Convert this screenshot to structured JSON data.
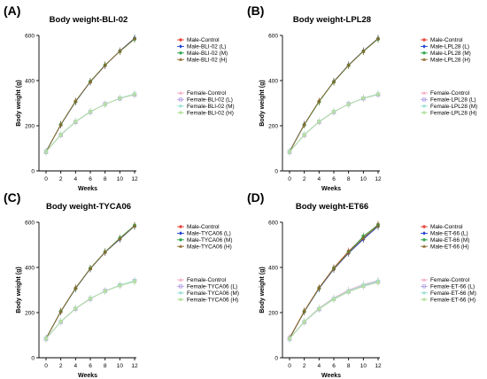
{
  "chart_data": [
    {
      "type": "line",
      "panel": "(A)",
      "title": "Body weight-BLI-02",
      "xlabel": "Weeks",
      "ylabel": "Body weight (g)",
      "x": [
        0,
        2,
        4,
        6,
        8,
        10,
        12
      ],
      "xlim": [
        0,
        12.5
      ],
      "ylim": [
        0,
        600
      ],
      "yticks": [
        0,
        200,
        400,
        600
      ],
      "legend_position": "right",
      "series": [
        {
          "name": "Male-Control",
          "color": "#e8453c",
          "marker": "circle",
          "values": [
            85,
            205,
            308,
            395,
            468,
            530,
            585
          ]
        },
        {
          "name": "Male-BLI-02 (L)",
          "color": "#1f3fcf",
          "marker": "diamond",
          "values": [
            86,
            204,
            306,
            394,
            467,
            531,
            588
          ]
        },
        {
          "name": "Male-BLI-02 (M)",
          "color": "#2fa84f",
          "marker": "circle",
          "values": [
            85,
            206,
            307,
            396,
            469,
            529,
            584
          ]
        },
        {
          "name": "Male-BLI-02 (H)",
          "color": "#8a6a2a",
          "marker": "triangle",
          "values": [
            84,
            205,
            309,
            395,
            468,
            530,
            586
          ]
        },
        {
          "name": "Female-Control",
          "color": "#f2a9c4",
          "marker": "triangle",
          "values": [
            85,
            160,
            218,
            262,
            295,
            322,
            340
          ]
        },
        {
          "name": "Female-BLI-02 (L)",
          "color": "#b6a4e6",
          "marker": "square",
          "values": [
            84,
            159,
            217,
            261,
            296,
            321,
            338
          ]
        },
        {
          "name": "Female-BLI-02 (M)",
          "color": "#9fe0d6",
          "marker": "circle",
          "values": [
            85,
            161,
            219,
            263,
            294,
            323,
            341
          ]
        },
        {
          "name": "Female-BLI-02 (H)",
          "color": "#b5e09f",
          "marker": "circle",
          "values": [
            84,
            160,
            218,
            262,
            295,
            322,
            339
          ]
        }
      ]
    },
    {
      "type": "line",
      "panel": "(B)",
      "title": "Body weight-LPL28",
      "xlabel": "Weeks",
      "ylabel": "Body weight (g)",
      "x": [
        0,
        2,
        4,
        6,
        8,
        10,
        12
      ],
      "xlim": [
        0,
        12.5
      ],
      "ylim": [
        0,
        600
      ],
      "yticks": [
        0,
        200,
        400,
        600
      ],
      "legend_position": "right",
      "series": [
        {
          "name": "Male-Control",
          "color": "#e8453c",
          "marker": "circle",
          "values": [
            85,
            205,
            308,
            395,
            468,
            530,
            585
          ]
        },
        {
          "name": "Male-LPL28 (L)",
          "color": "#1f3fcf",
          "marker": "diamond",
          "values": [
            86,
            206,
            307,
            396,
            469,
            531,
            587
          ]
        },
        {
          "name": "Male-LPL28 (M)",
          "color": "#2fa84f",
          "marker": "circle",
          "values": [
            85,
            204,
            306,
            394,
            467,
            529,
            584
          ]
        },
        {
          "name": "Male-LPL28 (H)",
          "color": "#8a6a2a",
          "marker": "triangle",
          "values": [
            84,
            205,
            309,
            395,
            468,
            530,
            586
          ]
        },
        {
          "name": "Female-Control",
          "color": "#f2a9c4",
          "marker": "triangle",
          "values": [
            85,
            160,
            218,
            262,
            295,
            322,
            340
          ]
        },
        {
          "name": "Female-LPL28 (L)",
          "color": "#b6a4e6",
          "marker": "square",
          "values": [
            84,
            159,
            217,
            261,
            296,
            321,
            338
          ]
        },
        {
          "name": "Female-LPL28 (M)",
          "color": "#9fe0d6",
          "marker": "circle",
          "values": [
            85,
            161,
            219,
            263,
            294,
            323,
            341
          ]
        },
        {
          "name": "Female-LPL28 (H)",
          "color": "#b5e09f",
          "marker": "circle",
          "values": [
            84,
            160,
            218,
            262,
            295,
            322,
            339
          ]
        }
      ]
    },
    {
      "type": "line",
      "panel": "(C)",
      "title": "Body weight-TYCA06",
      "xlabel": "Weeks",
      "ylabel": "Body weight (g)",
      "x": [
        0,
        2,
        4,
        6,
        8,
        10,
        12
      ],
      "xlim": [
        0,
        12.5
      ],
      "ylim": [
        0,
        600
      ],
      "yticks": [
        0,
        200,
        400,
        600
      ],
      "legend_position": "right",
      "series": [
        {
          "name": "Male-Control",
          "color": "#e8453c",
          "marker": "circle",
          "values": [
            85,
            205,
            308,
            395,
            468,
            528,
            585
          ]
        },
        {
          "name": "Male-TYCA06 (L)",
          "color": "#1f3fcf",
          "marker": "diamond",
          "values": [
            86,
            204,
            306,
            394,
            467,
            525,
            583
          ]
        },
        {
          "name": "Male-TYCA06 (M)",
          "color": "#2fa84f",
          "marker": "circle",
          "values": [
            85,
            206,
            307,
            396,
            469,
            530,
            586
          ]
        },
        {
          "name": "Male-TYCA06 (H)",
          "color": "#8a6a2a",
          "marker": "triangle",
          "values": [
            84,
            205,
            309,
            395,
            468,
            527,
            584
          ]
        },
        {
          "name": "Female-Control",
          "color": "#f2a9c4",
          "marker": "triangle",
          "values": [
            85,
            160,
            218,
            262,
            295,
            320,
            338
          ]
        },
        {
          "name": "Female-TYCA06 (L)",
          "color": "#b6a4e6",
          "marker": "square",
          "values": [
            84,
            159,
            217,
            261,
            296,
            321,
            340
          ]
        },
        {
          "name": "Female-TYCA06 (M)",
          "color": "#9fe0d6",
          "marker": "circle",
          "values": [
            85,
            161,
            219,
            263,
            294,
            322,
            341
          ]
        },
        {
          "name": "Female-TYCA06 (H)",
          "color": "#b5e09f",
          "marker": "circle",
          "values": [
            84,
            160,
            218,
            262,
            295,
            319,
            337
          ]
        }
      ]
    },
    {
      "type": "line",
      "panel": "(D)",
      "title": "Body weight-ET66",
      "xlabel": "Weeks",
      "ylabel": "Body weight (g)",
      "x": [
        0,
        2,
        4,
        6,
        8,
        10,
        12
      ],
      "xlim": [
        0,
        12.5
      ],
      "ylim": [
        0,
        600
      ],
      "yticks": [
        0,
        200,
        400,
        600
      ],
      "legend_position": "right",
      "series": [
        {
          "name": "Male-Control",
          "color": "#e8453c",
          "marker": "circle",
          "values": [
            88,
            207,
            310,
            398,
            472,
            535,
            590
          ]
        },
        {
          "name": "Male-ET-66 (L)",
          "color": "#1f3fcf",
          "marker": "diamond",
          "values": [
            86,
            204,
            306,
            392,
            463,
            525,
            582
          ]
        },
        {
          "name": "Male-ET-66 (M)",
          "color": "#2fa84f",
          "marker": "circle",
          "values": [
            85,
            205,
            308,
            396,
            468,
            538,
            588
          ]
        },
        {
          "name": "Male-ET-66 (H)",
          "color": "#8a6a2a",
          "marker": "triangle",
          "values": [
            84,
            206,
            309,
            394,
            466,
            530,
            585
          ]
        },
        {
          "name": "Female-Control",
          "color": "#f2a9c4",
          "marker": "triangle",
          "values": [
            85,
            160,
            220,
            265,
            300,
            325,
            342
          ]
        },
        {
          "name": "Female-ET-66 (L)",
          "color": "#b6a4e6",
          "marker": "square",
          "values": [
            84,
            158,
            215,
            260,
            293,
            318,
            336
          ]
        },
        {
          "name": "Female-ET-66 (M)",
          "color": "#9fe0d6",
          "marker": "circle",
          "values": [
            85,
            161,
            218,
            262,
            296,
            322,
            340
          ]
        },
        {
          "name": "Female-ET-66 (H)",
          "color": "#b5e09f",
          "marker": "circle",
          "values": [
            84,
            159,
            216,
            258,
            292,
            316,
            334
          ]
        }
      ]
    }
  ]
}
